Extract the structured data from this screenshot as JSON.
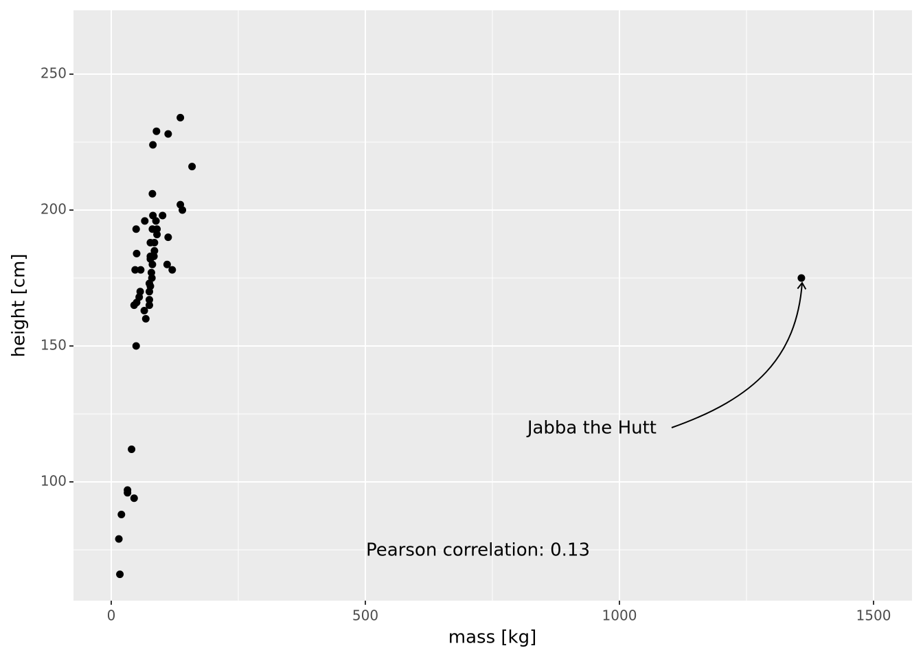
{
  "chart_data": {
    "type": "scatter",
    "x_label": "mass [kg]",
    "y_label": "height [cm]",
    "annotations": [
      "Pearson correlation: 0.13",
      "Jabba the Hutt"
    ],
    "color": "#000000",
    "grid": true,
    "xlim": [
      -74.3,
      1575.7
    ],
    "ylim": [
      56.3,
      273.5
    ],
    "xticks": [
      0,
      500,
      1000,
      1500
    ],
    "yticks": [
      100,
      150,
      200,
      250
    ],
    "x": [
      136,
      89,
      112,
      82,
      159,
      81,
      136,
      140,
      82,
      101,
      66,
      88,
      49,
      81,
      90,
      90,
      112,
      77,
      85,
      50,
      85,
      77,
      84,
      77,
      81,
      110,
      47,
      58,
      120,
      79,
      80,
      75,
      77,
      75,
      57,
      55,
      75,
      75,
      45,
      50,
      65,
      68,
      49,
      40,
      32,
      32,
      45,
      20,
      15,
      17,
      1358
    ],
    "y": [
      234,
      229,
      228,
      224,
      216,
      206,
      202,
      200,
      198,
      198,
      196,
      196,
      193,
      193,
      193,
      191,
      190,
      188,
      188,
      184,
      185,
      183,
      183,
      182,
      180,
      180,
      178,
      178,
      178,
      177,
      175,
      173,
      172,
      170,
      170,
      168,
      167,
      165,
      165,
      166,
      163,
      160,
      150,
      112,
      97,
      96,
      94,
      88,
      79,
      66,
      175
    ]
  }
}
